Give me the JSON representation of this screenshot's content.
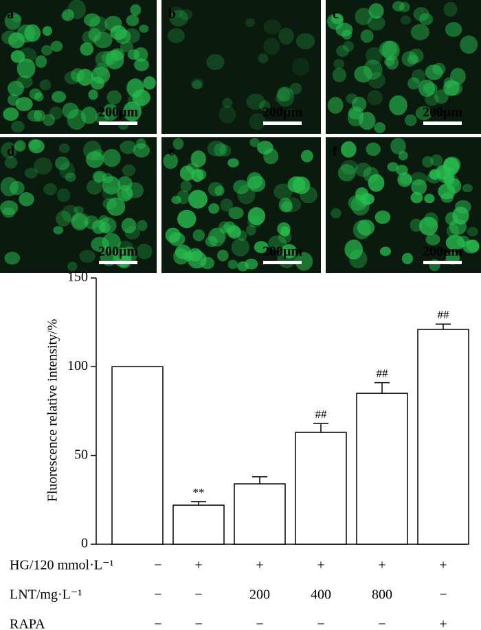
{
  "panels": [
    {
      "label": "a",
      "scale": "200μm"
    },
    {
      "label": "b",
      "scale": "200μm"
    },
    {
      "label": "c",
      "scale": "200μm"
    },
    {
      "label": "d",
      "scale": "200μm"
    },
    {
      "label": "e",
      "scale": "200μm"
    },
    {
      "label": "f",
      "scale": "200μm"
    }
  ],
  "chart_data": {
    "type": "bar",
    "y_label": "Fluorescence relative intensity/%",
    "values": [
      100,
      22,
      34,
      63,
      85,
      121
    ],
    "errors": [
      null,
      2,
      4,
      5,
      6,
      3
    ],
    "value_annotations": [
      null,
      "**",
      null,
      "##",
      "##",
      "##"
    ],
    "color": "#ffffff",
    "ylim": [
      0,
      150
    ],
    "yticks": [
      0,
      50,
      100,
      150
    ],
    "treatments": [
      {
        "label": "HG/120 mmol·L⁻¹",
        "values": [
          "−",
          "+",
          "+",
          "+",
          "+",
          "+"
        ]
      },
      {
        "label": "LNT/mg·L⁻¹",
        "values": [
          "−",
          "−",
          "200",
          "400",
          "800",
          "−"
        ]
      },
      {
        "label": "RAPA",
        "values": [
          "−",
          "−",
          "−",
          "−",
          "−",
          "+"
        ]
      }
    ]
  }
}
